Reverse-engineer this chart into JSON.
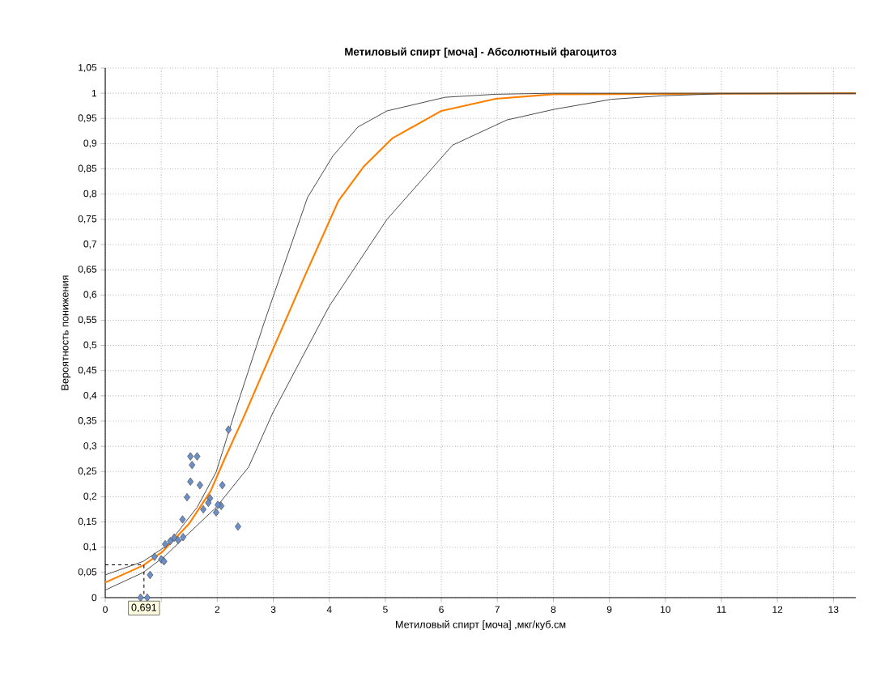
{
  "chart_data": {
    "type": "line",
    "title": "Метиловый спирт [моча] - Абсолютный фагоцитоз",
    "xlabel": "Метиловый спирт [моча] ,мкг/куб.см",
    "ylabel": "Вероятность понижения",
    "xlim": [
      0,
      13.4
    ],
    "ylim": [
      0,
      1.05
    ],
    "xticks": [
      0,
      {
        "value": 1,
        "label": null
      },
      2,
      3,
      4,
      5,
      6,
      7,
      8,
      9,
      10,
      11,
      12,
      13
    ],
    "yticks": [
      {
        "value": 0,
        "label": "0"
      },
      {
        "value": 0.05,
        "label": "0,05"
      },
      {
        "value": 0.1,
        "label": "0,1"
      },
      {
        "value": 0.15,
        "label": "0,15"
      },
      {
        "value": 0.2,
        "label": "0,2"
      },
      {
        "value": 0.25,
        "label": "0,25"
      },
      {
        "value": 0.3,
        "label": "0,3"
      },
      {
        "value": 0.35,
        "label": "0,35"
      },
      {
        "value": 0.4,
        "label": "0,4"
      },
      {
        "value": 0.45,
        "label": "0,45"
      },
      {
        "value": 0.5,
        "label": "0,5"
      },
      {
        "value": 0.55,
        "label": "0,55"
      },
      {
        "value": 0.6,
        "label": "0,6"
      },
      {
        "value": 0.65,
        "label": "0,65"
      },
      {
        "value": 0.7,
        "label": "0,7"
      },
      {
        "value": 0.75,
        "label": "0,75"
      },
      {
        "value": 0.8,
        "label": "0,8"
      },
      {
        "value": 0.85,
        "label": "0,85"
      },
      {
        "value": 0.9,
        "label": "0,9"
      },
      {
        "value": 0.95,
        "label": "0,95"
      },
      {
        "value": 1,
        "label": "1"
      },
      {
        "value": 1.05,
        "label": "1,05"
      }
    ],
    "grid": true,
    "annotations": [
      {
        "text": "0,691",
        "x": 0.691,
        "y": 0
      }
    ],
    "series": [
      {
        "color": "#ff8000",
        "x": [
          0,
          0.68,
          1.01,
          1.5,
          1.88,
          2.13,
          2.46,
          3.02,
          3.58,
          4.16,
          4.61,
          5.13,
          6.0,
          6.97,
          8.0,
          13.4
        ],
        "values": [
          0.03,
          0.064,
          0.09,
          0.147,
          0.211,
          0.275,
          0.355,
          0.499,
          0.642,
          0.786,
          0.854,
          0.911,
          0.965,
          0.989,
          0.998,
          1.0
        ]
      },
      {
        "color": "#404040",
        "x": [
          0,
          0.68,
          1.11,
          1.64,
          1.98,
          2.31,
          2.83,
          3.61,
          4.06,
          4.51,
          5.03,
          6.07,
          6.97,
          8.0,
          13.4
        ],
        "values": [
          0.045,
          0.072,
          0.104,
          0.179,
          0.249,
          0.366,
          0.543,
          0.793,
          0.875,
          0.933,
          0.965,
          0.992,
          0.998,
          1.0,
          1.0
        ]
      },
      {
        "color": "#404040",
        "x": [
          0,
          0.68,
          1.06,
          1.98,
          2.56,
          2.99,
          4.0,
          5.03,
          6.2,
          7.17,
          8.01,
          9.04,
          9.94,
          11.0,
          13.4
        ],
        "values": [
          0.015,
          0.05,
          0.082,
          0.179,
          0.259,
          0.366,
          0.578,
          0.75,
          0.897,
          0.947,
          0.968,
          0.988,
          0.995,
          0.999,
          0.999
        ]
      },
      {
        "line_style": "dashed",
        "color": "#000000",
        "x": [
          0,
          0.691,
          0.691
        ],
        "values": [
          0.065,
          0.065,
          0
        ]
      },
      {
        "type": "scatter",
        "marker": "diamond",
        "color": "#6b8fc8",
        "x": [
          2.2,
          1.52,
          1.64,
          1.55,
          1.52,
          1.69,
          2.09,
          1.46,
          1.87,
          1.84,
          2.07,
          2.01,
          1.98,
          1.75,
          2.37,
          1.38,
          1.39,
          1.3,
          1.23,
          1.16,
          1.07,
          0.88,
          1.0,
          1.05,
          0.8,
          0.63,
          0.75
        ],
        "values": [
          0.333,
          0.28,
          0.28,
          0.263,
          0.23,
          0.223,
          0.223,
          0.199,
          0.197,
          0.188,
          0.182,
          0.184,
          0.169,
          0.175,
          0.141,
          0.155,
          0.12,
          0.114,
          0.119,
          0.112,
          0.106,
          0.081,
          0.076,
          0.072,
          0.045,
          0,
          0
        ]
      }
    ]
  }
}
